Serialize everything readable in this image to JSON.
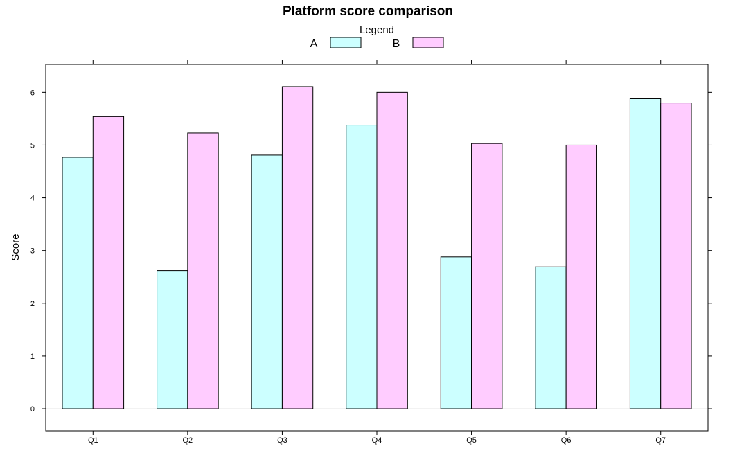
{
  "chart_data": {
    "type": "bar",
    "title": "Platform score comparison",
    "xlabel": "",
    "ylabel": "Score",
    "categories": [
      "Q1",
      "Q2",
      "Q3",
      "Q4",
      "Q5",
      "Q6",
      "Q7"
    ],
    "series": [
      {
        "name": "A",
        "values": [
          4.77,
          2.62,
          4.81,
          5.38,
          2.88,
          2.69,
          5.88
        ],
        "color": "#ccffff"
      },
      {
        "name": "B",
        "values": [
          5.54,
          5.23,
          6.11,
          6.0,
          5.03,
          5.0,
          5.8
        ],
        "color": "#ffccff"
      }
    ],
    "ylim": [
      -0.42,
      6.53
    ],
    "yticks": [
      0,
      1,
      2,
      3,
      4,
      5,
      6
    ],
    "legend": {
      "title": "Legend",
      "placement": "top"
    },
    "grid": false,
    "reference_line": 0
  }
}
